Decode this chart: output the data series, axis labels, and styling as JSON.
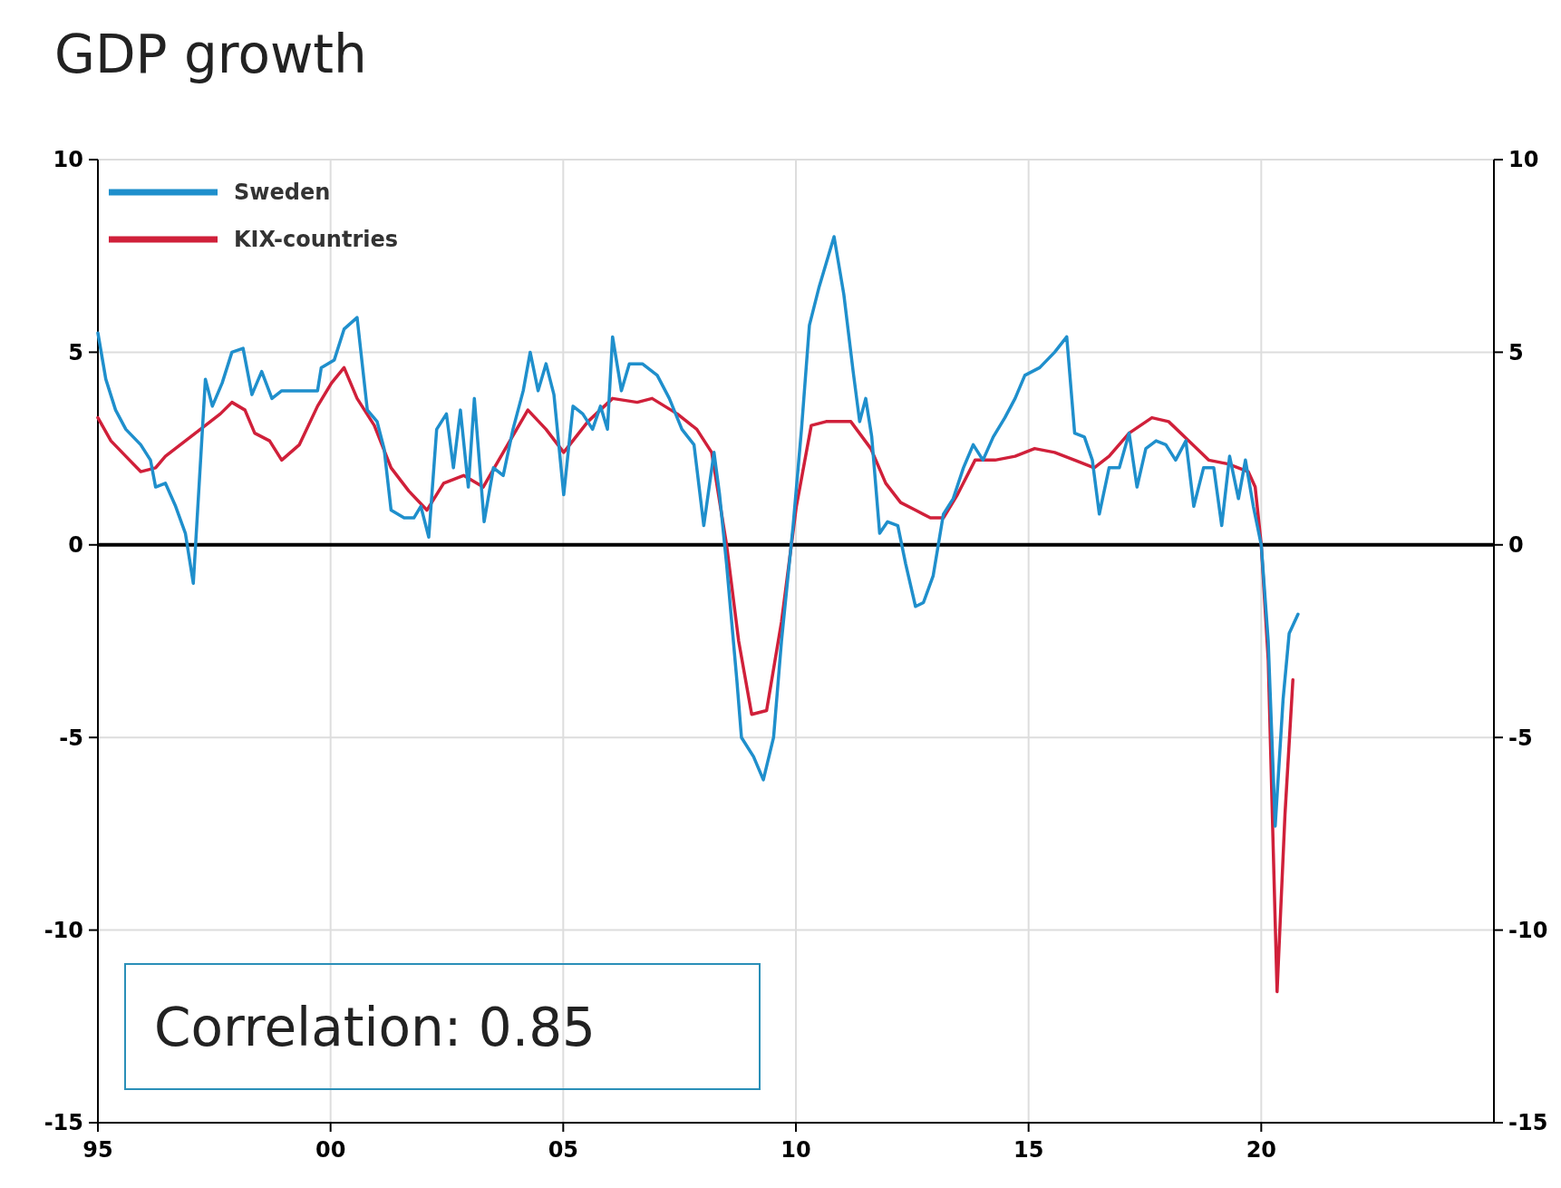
{
  "chart_data": {
    "type": "line",
    "title": "GDP growth",
    "xlim": [
      1995,
      2025
    ],
    "xticks": [
      {
        "value": 1995,
        "label": "95"
      },
      {
        "value": 2000,
        "label": "00"
      },
      {
        "value": 2005,
        "label": "05"
      },
      {
        "value": 2010,
        "label": "10"
      },
      {
        "value": 2015,
        "label": "15"
      },
      {
        "value": 2020,
        "label": "20"
      }
    ],
    "ylim": [
      -15,
      10
    ],
    "yticks": [
      -15,
      -10,
      -5,
      0,
      5,
      10
    ],
    "y2lim": [
      -15,
      10
    ],
    "y2ticks": [
      -15,
      -10,
      -5,
      0,
      5,
      10
    ],
    "grid": true,
    "legend": "top left",
    "ref_lines": [
      {
        "axis": "y",
        "value": 0,
        "color": "#000000"
      }
    ],
    "annotations": [
      "Correlation: 0.85"
    ],
    "series": [
      {
        "name": "KIX-countries",
        "color": "#d0203a",
        "x": [
          1995.0,
          1995.28,
          1995.6,
          1995.92,
          1996.24,
          1996.45,
          1996.88,
          1997.31,
          1997.63,
          1997.88,
          1998.16,
          1998.37,
          1998.69,
          1998.95,
          1999.33,
          1999.72,
          2000.02,
          2000.29,
          2000.57,
          2000.94,
          2001.3,
          2001.68,
          2002.07,
          2002.43,
          2002.86,
          2003.28,
          2003.71,
          2004.24,
          2004.63,
          2005.01,
          2005.53,
          2006.06,
          2006.59,
          2006.91,
          2007.45,
          2007.87,
          2008.19,
          2008.51,
          2008.77,
          2009.05,
          2009.37,
          2009.69,
          2010.01,
          2010.33,
          2010.65,
          2011.18,
          2011.61,
          2011.93,
          2012.25,
          2012.57,
          2012.89,
          2013.17,
          2013.47,
          2013.85,
          2014.28,
          2014.71,
          2015.13,
          2015.56,
          2015.99,
          2016.41,
          2016.73,
          2017.16,
          2017.65,
          2018.01,
          2018.44,
          2018.87,
          2019.29,
          2019.72,
          2019.87,
          2020.0,
          2020.15,
          2020.26,
          2020.34,
          2020.51,
          2020.68
        ],
        "values": [
          3.3,
          2.7,
          2.3,
          1.9,
          2.0,
          2.3,
          2.7,
          3.1,
          3.4,
          3.7,
          3.5,
          2.9,
          2.7,
          2.2,
          2.6,
          3.6,
          4.2,
          4.6,
          3.8,
          3.1,
          2.0,
          1.4,
          0.9,
          1.6,
          1.8,
          1.5,
          2.4,
          3.5,
          3.0,
          2.4,
          3.2,
          3.8,
          3.7,
          3.8,
          3.4,
          3.0,
          2.4,
          0.0,
          -2.5,
          -4.4,
          -4.3,
          -2.0,
          1.0,
          3.1,
          3.2,
          3.2,
          2.5,
          1.6,
          1.1,
          0.9,
          0.7,
          0.7,
          1.3,
          2.2,
          2.2,
          2.3,
          2.5,
          2.4,
          2.2,
          2.0,
          2.3,
          2.9,
          3.3,
          3.2,
          2.7,
          2.2,
          2.1,
          1.9,
          1.5,
          0.0,
          -3.0,
          -8.0,
          -11.6,
          -7.0,
          -3.5
        ]
      },
      {
        "name": "Sweden",
        "color": "#1f8fcc",
        "x": [
          1995.0,
          1995.17,
          1995.38,
          1995.6,
          1995.92,
          1996.13,
          1996.24,
          1996.45,
          1996.67,
          1996.88,
          1997.05,
          1997.31,
          1997.46,
          1997.67,
          1997.88,
          1998.12,
          1998.31,
          1998.52,
          1998.74,
          1998.95,
          1999.33,
          1999.72,
          1999.8,
          2000.08,
          2000.29,
          2000.57,
          2000.79,
          2001.0,
          2001.15,
          2001.3,
          2001.58,
          2001.79,
          2001.94,
          2002.11,
          2002.28,
          2002.49,
          2002.64,
          2002.79,
          2002.96,
          2003.09,
          2003.3,
          2003.5,
          2003.71,
          2003.92,
          2004.14,
          2004.29,
          2004.46,
          2004.63,
          2004.8,
          2005.01,
          2005.21,
          2005.42,
          2005.63,
          2005.8,
          2005.95,
          2006.06,
          2006.25,
          2006.42,
          2006.7,
          2007.02,
          2007.28,
          2007.55,
          2007.81,
          2008.02,
          2008.24,
          2008.36,
          2008.51,
          2008.73,
          2008.83,
          2009.09,
          2009.3,
          2009.52,
          2009.69,
          2009.94,
          2010.12,
          2010.29,
          2010.5,
          2010.82,
          2011.03,
          2011.23,
          2011.37,
          2011.5,
          2011.63,
          2011.8,
          2011.97,
          2012.19,
          2012.36,
          2012.57,
          2012.74,
          2012.95,
          2013.17,
          2013.38,
          2013.6,
          2013.81,
          2014.02,
          2014.24,
          2014.49,
          2014.71,
          2014.92,
          2015.24,
          2015.56,
          2015.82,
          2015.99,
          2016.2,
          2016.37,
          2016.52,
          2016.73,
          2016.95,
          2017.16,
          2017.33,
          2017.52,
          2017.74,
          2017.95,
          2018.16,
          2018.38,
          2018.55,
          2018.76,
          2018.98,
          2019.15,
          2019.32,
          2019.51,
          2019.66,
          2019.83,
          2020.0,
          2020.15,
          2020.3,
          2020.47,
          2020.6,
          2020.79
        ],
        "values": [
          5.5,
          4.3,
          3.5,
          3.0,
          2.6,
          2.2,
          1.5,
          1.6,
          1.0,
          0.3,
          -1.0,
          4.3,
          3.6,
          4.2,
          5.0,
          5.1,
          3.9,
          4.5,
          3.8,
          4.0,
          4.0,
          4.0,
          4.6,
          4.8,
          5.6,
          5.9,
          3.5,
          3.2,
          2.5,
          0.9,
          0.7,
          0.7,
          1.0,
          0.2,
          3.0,
          3.4,
          2.0,
          3.5,
          1.5,
          3.8,
          0.6,
          2.0,
          1.8,
          3.0,
          4.0,
          5.0,
          4.0,
          4.7,
          3.9,
          1.3,
          3.6,
          3.4,
          3.0,
          3.6,
          3.0,
          5.4,
          4.0,
          4.7,
          4.7,
          4.4,
          3.8,
          3.0,
          2.6,
          0.5,
          2.4,
          1.3,
          -0.5,
          -3.5,
          -5.0,
          -5.5,
          -6.1,
          -5.0,
          -2.5,
          0.5,
          3.0,
          5.7,
          6.7,
          8.0,
          6.5,
          4.5,
          3.2,
          3.8,
          2.8,
          0.3,
          0.6,
          0.5,
          -0.5,
          -1.6,
          -1.5,
          -0.8,
          0.8,
          1.2,
          2.0,
          2.6,
          2.2,
          2.8,
          3.3,
          3.8,
          4.4,
          4.6,
          5.0,
          5.4,
          2.9,
          2.8,
          2.2,
          0.8,
          2.0,
          2.0,
          2.9,
          1.5,
          2.5,
          2.7,
          2.6,
          2.2,
          2.7,
          1.0,
          2.0,
          2.0,
          0.5,
          2.3,
          1.2,
          2.2,
          1.0,
          0.0,
          -2.5,
          -7.3,
          -4.0,
          -2.3,
          -1.8
        ]
      }
    ]
  }
}
